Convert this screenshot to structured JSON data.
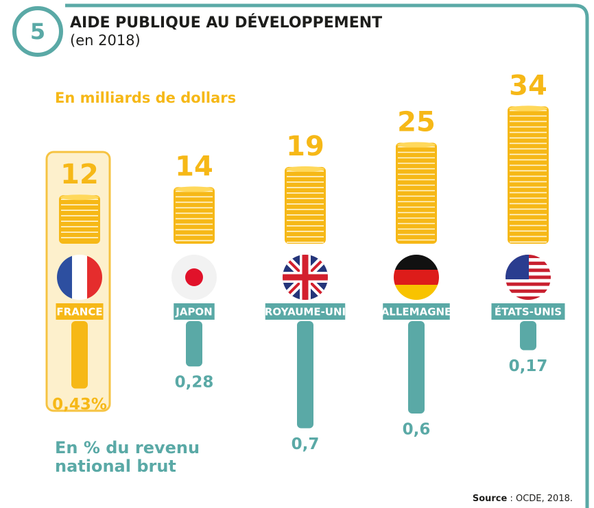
{
  "chart_data": {
    "type": "bar",
    "number": "5",
    "title": "AIDE PUBLIQUE AU DÉVELOPPEMENT",
    "subtitle": "(en 2018)",
    "coins_label": "En milliards de dollars",
    "bars_label": "En % du revenu national brut",
    "source_label": "Source",
    "source_text": " : OCDE, 2018.",
    "categories": [
      "FRANCE",
      "JAPON",
      "ROYAUME-UNI",
      "ALLEMAGNE",
      "ÉTATS-UNIS"
    ],
    "series": [
      {
        "name": "En milliards de dollars",
        "color": "#f6b817",
        "values": [
          12,
          14,
          19,
          25,
          34
        ]
      },
      {
        "name": "En % du revenu national brut",
        "colors": [
          "#f6b817",
          "#5aa9a6",
          "#5aa9a6",
          "#5aa9a6",
          "#5aa9a6"
        ],
        "values": [
          0.43,
          0.28,
          0.7,
          0.6,
          0.17
        ],
        "value_labels": [
          "0,43%",
          "0,28",
          "0,7",
          "0,6",
          "0,17"
        ]
      }
    ]
  }
}
